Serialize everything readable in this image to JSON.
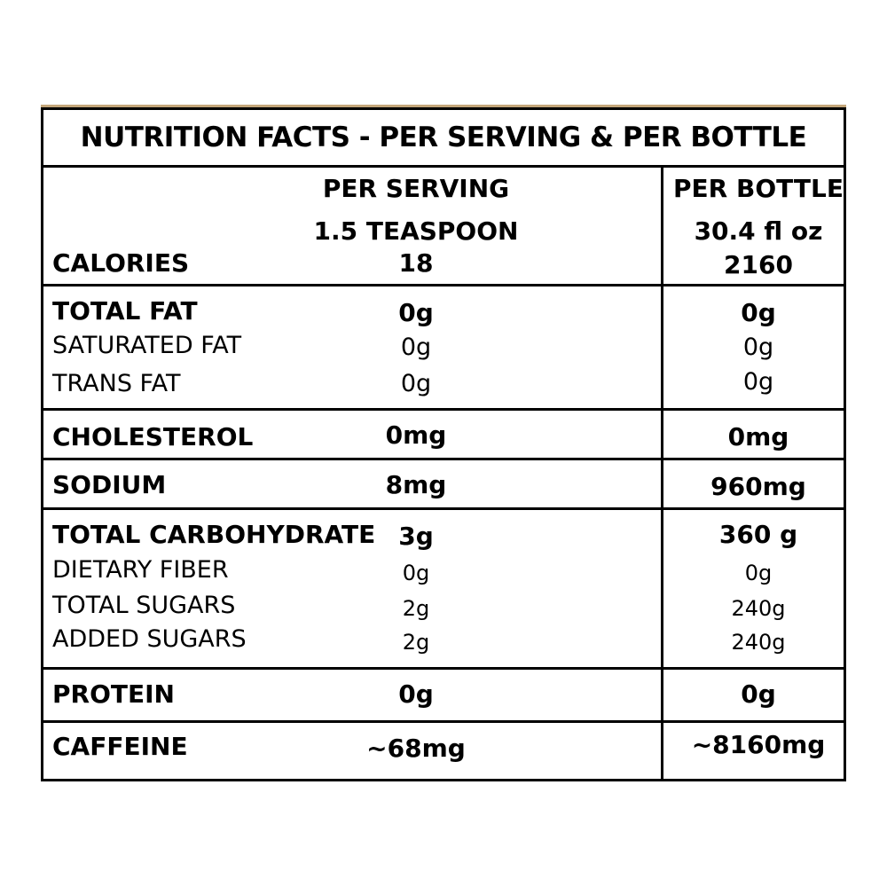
{
  "title": "NUTRITION FACTS - PER SERVING & PER BOTTLE",
  "header": {
    "per_serving": "PER SERVING",
    "serving_size": "1.5 TEASPOON",
    "per_bottle": "PER BOTTLE",
    "bottle_size": "30.4 fl oz"
  },
  "calories": {
    "label": "CALORIES",
    "serving": "18",
    "bottle": "2160"
  },
  "fat": {
    "total": {
      "label": "TOTAL FAT",
      "serving": "0g",
      "bottle": "0g"
    },
    "saturated": {
      "label": "SATURATED FAT",
      "serving": "0g",
      "bottle": "0g"
    },
    "trans": {
      "label": "TRANS FAT",
      "serving": "0g",
      "bottle": "0g"
    }
  },
  "cholesterol": {
    "label": "CHOLESTEROL",
    "serving": "0mg",
    "bottle": "0mg"
  },
  "sodium": {
    "label": "SODIUM",
    "serving": "8mg",
    "bottle": "960mg"
  },
  "carbs": {
    "total": {
      "label": "TOTAL CARBOHYDRATE",
      "serving": "3g",
      "bottle": "360 g"
    },
    "fiber": {
      "label": "DIETARY FIBER",
      "serving": "0g",
      "bottle": "0g"
    },
    "sugars": {
      "label": "TOTAL SUGARS",
      "serving": "2g",
      "bottle": "240g"
    },
    "added": {
      "label": "ADDED SUGARS",
      "serving": "2g",
      "bottle": "240g"
    }
  },
  "protein": {
    "label": "PROTEIN",
    "serving": "0g",
    "bottle": "0g"
  },
  "caffeine": {
    "label": "CAFFEINE",
    "serving": "~68mg",
    "bottle": "~8160mg"
  },
  "colors": {
    "accent": "#c4a67a",
    "ink": "#000000"
  }
}
